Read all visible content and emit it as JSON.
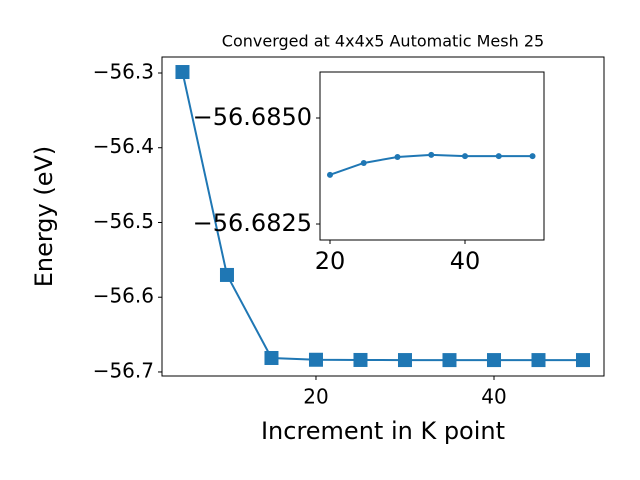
{
  "chart_data": [
    {
      "type": "line",
      "title": "Converged at 4x4x5 Automatic Mesh 25",
      "x_label": "Increment in K point",
      "y_label": "Energy (eV)",
      "x": [
        5,
        10,
        15,
        20,
        25,
        30,
        35,
        40,
        45,
        50
      ],
      "series": [
        {
          "color": "#1f77b4",
          "marker": "square",
          "values": [
            -56.2987,
            -56.5702,
            -56.6813,
            -56.68366,
            -56.68394,
            -56.68408,
            -56.68413,
            -56.6841,
            -56.6841,
            -56.6841
          ]
        }
      ],
      "xlim": [
        2.7,
        52.36
      ],
      "ylim": [
        -56.7054,
        -56.2786
      ],
      "xticks": [
        20,
        40
      ],
      "yticks": [
        {
          "value": -56.3,
          "label": "−56.3"
        },
        {
          "value": -56.4,
          "label": "−56.4"
        },
        {
          "value": -56.5,
          "label": "−56.5"
        },
        {
          "value": -56.6,
          "label": "−56.6"
        },
        {
          "value": -56.7,
          "label": "−56.7"
        }
      ]
    },
    {
      "type": "line",
      "x": [
        20,
        25,
        30,
        35,
        40,
        45,
        50
      ],
      "series": [
        {
          "color": "#1f77b4",
          "marker": "circle",
          "values": [
            -56.68366,
            -56.68394,
            -56.68408,
            -56.68413,
            -56.6841,
            -56.6841,
            -56.6841
          ]
        }
      ],
      "xlim": [
        18.52,
        51.7
      ],
      "ylim": [
        -56.682123,
        -56.686085
      ],
      "y_inverted": true,
      "xticks": [
        20,
        40
      ],
      "yticks": [
        {
          "value": -56.685,
          "label": "−56.6850"
        },
        {
          "value": -56.6825,
          "label": "−56.6825"
        }
      ]
    }
  ]
}
